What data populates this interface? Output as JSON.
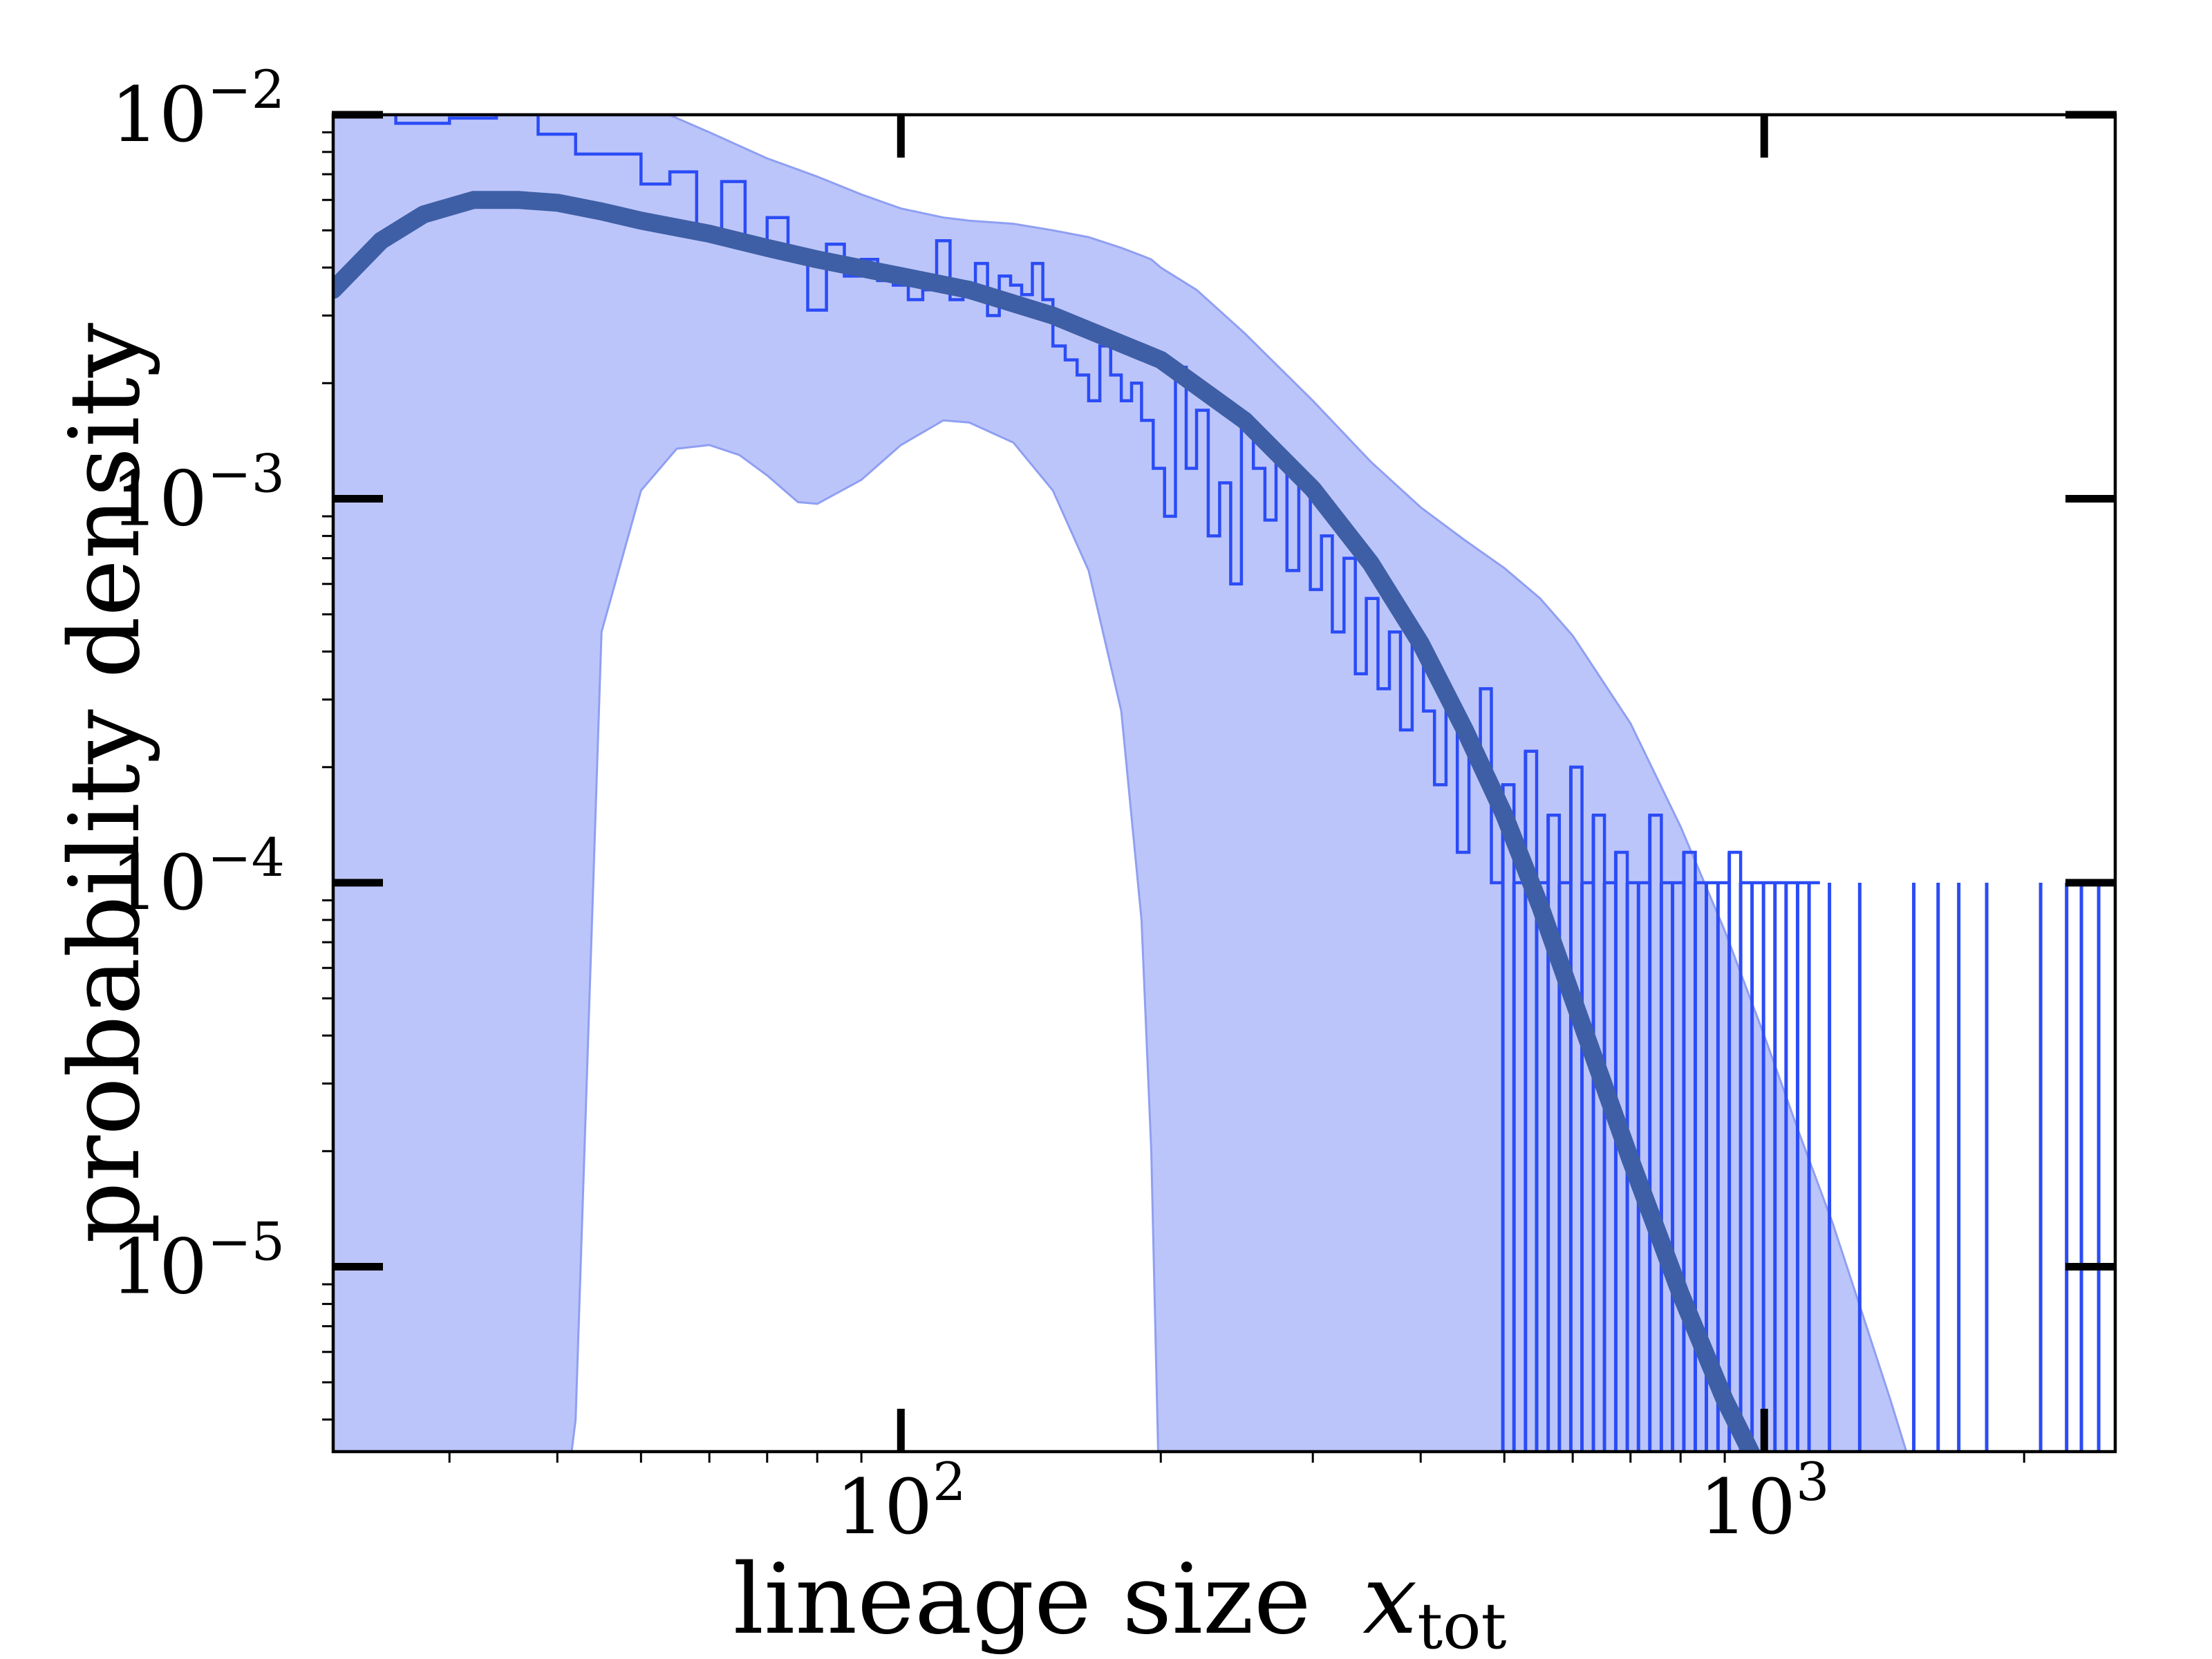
{
  "chart_data": {
    "type": "line",
    "title": "",
    "xlabel": "lineage size",
    "xlabel_math": "x",
    "xlabel_subscript": "tot",
    "ylabel": "probability density",
    "xscale": "log",
    "yscale": "log",
    "xlim": [
      22,
      2550
    ],
    "ylim": [
      3.3e-06,
      0.01
    ],
    "grid": false,
    "legend": "none",
    "x_ticks": [
      {
        "value": 100,
        "base": "10",
        "exp": "2"
      },
      {
        "value": 1000,
        "base": "10",
        "exp": "3"
      }
    ],
    "y_ticks": [
      {
        "value": 0.01,
        "base": "10",
        "exp": "−2"
      },
      {
        "value": 0.001,
        "base": "10",
        "exp": "−3"
      },
      {
        "value": 0.0001,
        "base": "10",
        "exp": "−4"
      },
      {
        "value": 1e-05,
        "base": "10",
        "exp": "−5"
      }
    ],
    "colors": {
      "band": "#bcc5fa",
      "band_edge": "#8f9ff2",
      "histogram": "#2b4cf5",
      "fit": "#3e5fa6",
      "axes": "#000000"
    },
    "series": [
      {
        "kind": "fit",
        "x": [
          22,
          25,
          28,
          32,
          36,
          40,
          45,
          50,
          60,
          70,
          80,
          100,
          120,
          150,
          200,
          250,
          300,
          350,
          400,
          450,
          500,
          550,
          600,
          700,
          800,
          900,
          1000
        ],
        "y": [
          0.0035,
          0.0047,
          0.0055,
          0.006,
          0.006,
          0.0059,
          0.0056,
          0.0053,
          0.0049,
          0.0045,
          0.0042,
          0.0038,
          0.0035,
          0.003,
          0.0023,
          0.0016,
          0.00106,
          0.00068,
          0.00042,
          0.00025,
          0.00015,
          8.7e-05,
          5e-05,
          1.9e-05,
          8.5e-06,
          4.5e-06,
          2.8e-06
        ]
      },
      {
        "kind": "band",
        "x": [
          22,
          26,
          30,
          35,
          40,
          42,
          45,
          50,
          55,
          60,
          65,
          70,
          76,
          80,
          90,
          100,
          112,
          120,
          135,
          150,
          165,
          180,
          190,
          195,
          200,
          220,
          250,
          300,
          350,
          400,
          450,
          500,
          550,
          600,
          700,
          800,
          900,
          1000,
          1100,
          1200,
          1300,
          1400,
          1480,
          1500
        ],
        "upper": [
          0.0105,
          0.011,
          0.0115,
          0.012,
          0.012,
          0.0119,
          0.0116,
          0.0108,
          0.0098,
          0.009,
          0.0083,
          0.0077,
          0.0072,
          0.0069,
          0.0062,
          0.0057,
          0.0054,
          0.0053,
          0.0052,
          0.005,
          0.0048,
          0.0045,
          0.0043,
          0.0042,
          0.004,
          0.0035,
          0.0027,
          0.0018,
          0.00125,
          0.00095,
          0.00078,
          0.00066,
          0.00055,
          0.00044,
          0.00026,
          0.00014,
          7.5e-05,
          4e-05,
          2.2e-05,
          1.3e-05,
          7.5e-06,
          4.5e-06,
          3e-06,
          2.9e-06
        ],
        "lower": [
          null,
          null,
          null,
          null,
          1e-06,
          4e-06,
          0.00045,
          0.00105,
          0.00135,
          0.00138,
          0.0013,
          0.00115,
          0.00098,
          0.00097,
          0.00112,
          0.00138,
          0.0016,
          0.00158,
          0.0014,
          0.00105,
          0.00065,
          0.00028,
          8e-05,
          2e-05,
          1e-06,
          null,
          null,
          null,
          null,
          null,
          null,
          null,
          null,
          null,
          null,
          null,
          null,
          null,
          null,
          null,
          null,
          null,
          null,
          null
        ]
      },
      {
        "kind": "histogram",
        "bins_x": [
          22,
          26,
          30,
          34,
          38,
          42,
          46,
          50,
          54,
          58,
          62,
          66,
          70,
          74,
          78,
          82,
          86,
          90,
          94,
          98,
          102,
          106,
          110,
          114,
          118,
          122,
          126,
          130,
          134,
          138,
          142,
          146,
          150,
          155,
          160,
          165,
          170,
          175,
          180,
          185,
          190,
          196,
          202,
          208,
          214,
          220,
          227,
          234,
          241,
          248,
          256,
          264,
          272,
          280,
          289,
          298,
          307,
          316,
          326,
          336,
          346,
          357,
          368,
          379,
          391,
          403,
          415,
          428,
          441,
          455,
          469,
          483,
          498,
          513,
          529,
          545,
          562,
          579,
          597,
          615,
          634,
          653,
          673,
          694,
          715,
          737,
          760,
          783,
          807,
          832,
          857,
          884,
          911,
          939,
          968,
          998,
          1029,
          1060,
          1093,
          1127,
          1160
        ],
        "values": [
          0.0105,
          0.0095,
          0.0098,
          0.0103,
          0.0089,
          0.0079,
          0.0079,
          0.0066,
          0.0071,
          0.0048,
          0.0067,
          0.0046,
          0.0054,
          0.0043,
          0.0031,
          0.0046,
          0.0038,
          0.0042,
          0.0037,
          0.0036,
          0.0033,
          0.0035,
          0.0047,
          0.0033,
          0.0036,
          0.0041,
          0.003,
          0.0038,
          0.0036,
          0.0034,
          0.0041,
          0.0033,
          0.0025,
          0.0023,
          0.0021,
          0.0018,
          0.0025,
          0.0021,
          0.0018,
          0.002,
          0.0016,
          0.0012,
          0.0009,
          0.0022,
          0.0012,
          0.0017,
          0.0008,
          0.0011,
          0.0006,
          0.0016,
          0.0012,
          0.00088,
          0.0013,
          0.00065,
          0.0011,
          0.00058,
          0.0008,
          0.00045,
          0.0007,
          0.00035,
          0.00055,
          0.00032,
          0.00045,
          0.00025,
          0.00042,
          0.00028,
          0.00018,
          0.0003,
          0.00012,
          0.00022,
          0.00032,
          0.0001,
          0.00018,
          0.0001,
          0.00022,
          0.0001,
          0.00015,
          0.0001,
          0.0002,
          0.0001,
          0.00015,
          0.0001,
          0.00012,
          0.0001,
          0.0001,
          0.00015,
          0.0001,
          0.0001,
          0.00012,
          0.0001,
          0.0001,
          0.0001,
          0.00012,
          0.0001,
          0.0001,
          0.0001,
          0.0001,
          0.0001,
          0.0001,
          0.0001
        ]
      },
      {
        "kind": "histogram-spikes",
        "x": [
          1190,
          1290,
          1490,
          1590,
          1680,
          1810,
          2090,
          2240,
          2330,
          2440
        ],
        "y": [
          0.0001,
          0.0001,
          0.0001,
          0.0001,
          0.0001,
          0.0001,
          0.0001,
          0.0001,
          0.0001,
          0.0001
        ]
      }
    ]
  }
}
